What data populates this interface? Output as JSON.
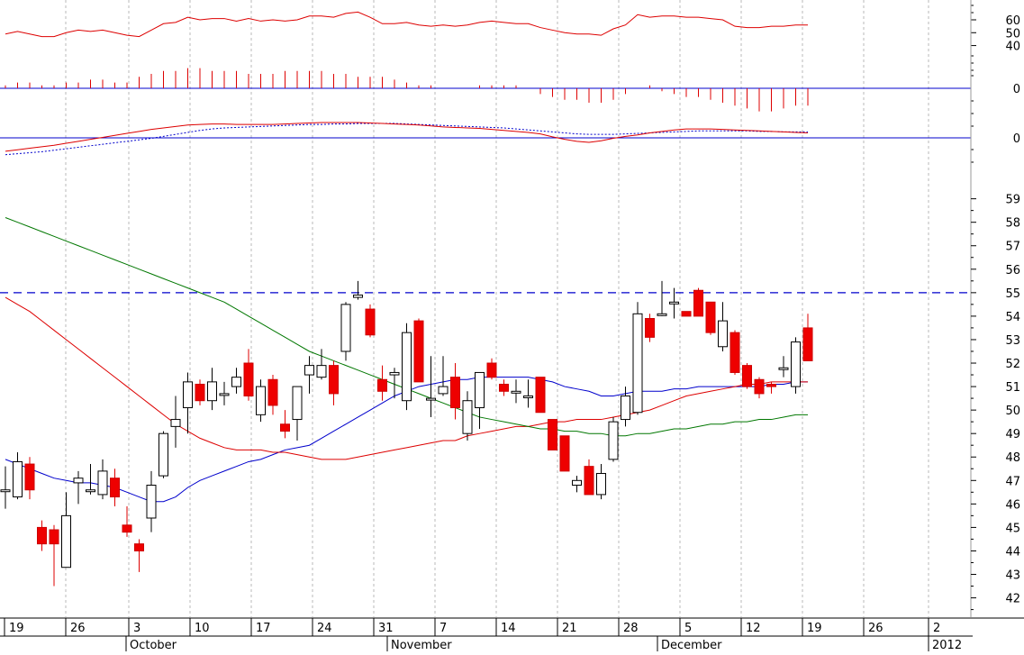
{
  "chart_data": {
    "type": "candlestick",
    "title": "",
    "price_axis": {
      "ticks": [
        42,
        43,
        44,
        45,
        46,
        47,
        48,
        49,
        50,
        51,
        52,
        53,
        54,
        55,
        56,
        57,
        58,
        59
      ],
      "labels": [
        "42",
        "43",
        "44",
        "45",
        "46",
        "47",
        "48",
        "49",
        "50",
        "51",
        "52",
        "53",
        "54",
        "55",
        "56",
        "57",
        "58",
        "59"
      ],
      "range": [
        41.6,
        59.6
      ]
    },
    "resistance_level": 55,
    "time_axis": {
      "week_labels": [
        "19",
        "26",
        "3",
        "10",
        "17",
        "24",
        "31",
        "7",
        "14",
        "21",
        "28",
        "5",
        "12",
        "19",
        "26",
        "2"
      ],
      "month_labels": [
        "October",
        "November",
        "December",
        "2012"
      ]
    },
    "candles": [
      {
        "date": "Sep 19",
        "open": 46.6,
        "high": 47.6,
        "low": 45.8,
        "close": 46.6
      },
      {
        "date": "Sep 20",
        "open": 46.3,
        "high": 48.2,
        "low": 46.2,
        "close": 47.8
      },
      {
        "date": "Sep 21",
        "open": 47.7,
        "high": 48.0,
        "low": 46.2,
        "close": 46.6
      },
      {
        "date": "Sep 22",
        "open": 45.0,
        "high": 45.3,
        "low": 44.0,
        "close": 44.3
      },
      {
        "date": "Sep 23",
        "open": 44.9,
        "high": 45.1,
        "low": 42.5,
        "close": 44.3
      },
      {
        "date": "Sep 26",
        "open": 43.3,
        "high": 46.5,
        "low": 43.3,
        "close": 45.5
      },
      {
        "date": "Sep 27",
        "open": 46.9,
        "high": 47.4,
        "low": 46.0,
        "close": 47.1
      },
      {
        "date": "Sep 28",
        "open": 46.6,
        "high": 47.7,
        "low": 46.4,
        "close": 46.6
      },
      {
        "date": "Sep 29",
        "open": 46.4,
        "high": 47.9,
        "low": 46.2,
        "close": 47.4
      },
      {
        "date": "Sep 30",
        "open": 47.1,
        "high": 47.5,
        "low": 45.9,
        "close": 46.3
      },
      {
        "date": "Oct 3",
        "open": 45.1,
        "high": 45.9,
        "low": 44.6,
        "close": 44.8
      },
      {
        "date": "Oct 4",
        "open": 44.3,
        "high": 44.5,
        "low": 43.1,
        "close": 44.0
      },
      {
        "date": "Oct 5",
        "open": 45.4,
        "high": 47.4,
        "low": 44.8,
        "close": 46.8
      },
      {
        "date": "Oct 6",
        "open": 47.2,
        "high": 49.1,
        "low": 47.1,
        "close": 49.0
      },
      {
        "date": "Oct 7",
        "open": 49.3,
        "high": 50.6,
        "low": 48.4,
        "close": 49.6
      },
      {
        "date": "Oct 10",
        "open": 50.1,
        "high": 51.6,
        "low": 49.0,
        "close": 51.2
      },
      {
        "date": "Oct 11",
        "open": 51.1,
        "high": 51.3,
        "low": 50.2,
        "close": 50.4
      },
      {
        "date": "Oct 12",
        "open": 50.4,
        "high": 51.8,
        "low": 50.0,
        "close": 51.2
      },
      {
        "date": "Oct 13",
        "open": 50.7,
        "high": 51.2,
        "low": 50.2,
        "close": 50.7
      },
      {
        "date": "Oct 14",
        "open": 51.0,
        "high": 51.8,
        "low": 50.7,
        "close": 51.4
      },
      {
        "date": "Oct 17",
        "open": 52.0,
        "high": 52.6,
        "low": 50.4,
        "close": 50.6
      },
      {
        "date": "Oct 18",
        "open": 49.8,
        "high": 51.3,
        "low": 49.5,
        "close": 51.0
      },
      {
        "date": "Oct 19",
        "open": 51.3,
        "high": 51.5,
        "low": 49.8,
        "close": 50.2
      },
      {
        "date": "Oct 20",
        "open": 49.4,
        "high": 50.0,
        "low": 48.8,
        "close": 49.1
      },
      {
        "date": "Oct 21",
        "open": 49.6,
        "high": 51.0,
        "low": 48.7,
        "close": 51.0
      },
      {
        "date": "Oct 24",
        "open": 51.5,
        "high": 52.3,
        "low": 50.7,
        "close": 51.9
      },
      {
        "date": "Oct 25",
        "open": 51.4,
        "high": 52.6,
        "low": 51.3,
        "close": 51.9
      },
      {
        "date": "Oct 26",
        "open": 51.9,
        "high": 52.1,
        "low": 50.2,
        "close": 50.7
      },
      {
        "date": "Oct 27",
        "open": 52.5,
        "high": 54.6,
        "low": 52.1,
        "close": 54.5
      },
      {
        "date": "Oct 28",
        "open": 54.8,
        "high": 55.5,
        "low": 54.7,
        "close": 54.9
      },
      {
        "date": "Oct 31",
        "open": 54.3,
        "high": 54.5,
        "low": 53.1,
        "close": 53.2
      },
      {
        "date": "Nov 1",
        "open": 51.3,
        "high": 51.9,
        "low": 50.4,
        "close": 50.8
      },
      {
        "date": "Nov 2",
        "open": 51.5,
        "high": 51.8,
        "low": 50.5,
        "close": 51.6
      },
      {
        "date": "Nov 3",
        "open": 50.4,
        "high": 53.7,
        "low": 50.0,
        "close": 53.3
      },
      {
        "date": "Nov 4",
        "open": 53.8,
        "high": 53.9,
        "low": 51.2,
        "close": 51.2
      },
      {
        "date": "Nov 7",
        "open": 50.5,
        "high": 52.3,
        "low": 49.7,
        "close": 50.5
      },
      {
        "date": "Nov 8",
        "open": 50.7,
        "high": 52.3,
        "low": 50.6,
        "close": 51.0
      },
      {
        "date": "Nov 9",
        "open": 51.4,
        "high": 52.0,
        "low": 49.6,
        "close": 50.1
      },
      {
        "date": "Nov 10",
        "open": 49.0,
        "high": 50.8,
        "low": 48.7,
        "close": 50.4
      },
      {
        "date": "Nov 11",
        "open": 50.1,
        "high": 51.6,
        "low": 49.2,
        "close": 51.6
      },
      {
        "date": "Nov 14",
        "open": 52.0,
        "high": 52.2,
        "low": 51.3,
        "close": 51.4
      },
      {
        "date": "Nov 15",
        "open": 51.1,
        "high": 51.3,
        "low": 50.6,
        "close": 50.8
      },
      {
        "date": "Nov 16",
        "open": 50.8,
        "high": 51.3,
        "low": 50.3,
        "close": 50.8
      },
      {
        "date": "Nov 17",
        "open": 50.6,
        "high": 51.3,
        "low": 50.1,
        "close": 50.6
      },
      {
        "date": "Nov 18",
        "open": 51.4,
        "high": 51.4,
        "low": 49.9,
        "close": 49.9
      },
      {
        "date": "Nov 21",
        "open": 49.6,
        "high": 49.6,
        "low": 48.3,
        "close": 48.3
      },
      {
        "date": "Nov 22",
        "open": 48.9,
        "high": 48.9,
        "low": 47.4,
        "close": 47.4
      },
      {
        "date": "Nov 23",
        "open": 46.8,
        "high": 47.2,
        "low": 46.5,
        "close": 47.0
      },
      {
        "date": "Nov 24",
        "open": 47.6,
        "high": 47.9,
        "low": 46.4,
        "close": 46.4
      },
      {
        "date": "Nov 25",
        "open": 46.4,
        "high": 47.7,
        "low": 46.2,
        "close": 47.3
      },
      {
        "date": "Nov 28",
        "open": 47.9,
        "high": 49.7,
        "low": 47.8,
        "close": 49.5
      },
      {
        "date": "Nov 29",
        "open": 49.6,
        "high": 51.0,
        "low": 49.3,
        "close": 50.6
      },
      {
        "date": "Nov 30",
        "open": 49.9,
        "high": 54.6,
        "low": 49.8,
        "close": 54.1
      },
      {
        "date": "Dec 1",
        "open": 53.9,
        "high": 54.1,
        "low": 52.9,
        "close": 53.1
      },
      {
        "date": "Dec 2",
        "open": 54.1,
        "high": 55.5,
        "low": 54.0,
        "close": 54.1
      },
      {
        "date": "Dec 5",
        "open": 54.6,
        "high": 55.2,
        "low": 53.9,
        "close": 54.6
      },
      {
        "date": "Dec 6",
        "open": 54.2,
        "high": 54.2,
        "low": 54.0,
        "close": 54.0
      },
      {
        "date": "Dec 7",
        "open": 55.1,
        "high": 55.2,
        "low": 54.0,
        "close": 54.0
      },
      {
        "date": "Dec 8",
        "open": 54.6,
        "high": 54.6,
        "low": 53.2,
        "close": 53.3
      },
      {
        "date": "Dec 9",
        "open": 52.7,
        "high": 54.6,
        "low": 52.5,
        "close": 53.8
      },
      {
        "date": "Dec 12",
        "open": 53.3,
        "high": 53.4,
        "low": 51.5,
        "close": 51.6
      },
      {
        "date": "Dec 13",
        "open": 51.9,
        "high": 52.0,
        "low": 50.9,
        "close": 51.0
      },
      {
        "date": "Dec 14",
        "open": 51.3,
        "high": 51.4,
        "low": 50.5,
        "close": 50.7
      },
      {
        "date": "Dec 15",
        "open": 51.1,
        "high": 51.2,
        "low": 50.7,
        "close": 51.0
      },
      {
        "date": "Dec 16",
        "open": 51.8,
        "high": 52.3,
        "low": 51.4,
        "close": 51.8
      },
      {
        "date": "Dec 19",
        "open": 51.0,
        "high": 53.1,
        "low": 50.7,
        "close": 52.9
      },
      {
        "date": "Dec 20",
        "open": 53.5,
        "high": 54.1,
        "low": 52.1,
        "close": 52.1
      }
    ],
    "moving_averages": [
      {
        "color": "#0000cc",
        "values": [
          47.9,
          47.7,
          47.5,
          47.3,
          47.1,
          47.0,
          46.9,
          46.9,
          46.8,
          46.7,
          46.5,
          46.3,
          46.1,
          46.1,
          46.3,
          46.7,
          47.0,
          47.2,
          47.4,
          47.6,
          47.8,
          47.9,
          48.1,
          48.3,
          48.4,
          48.5,
          48.8,
          49.1,
          49.4,
          49.7,
          50.0,
          50.3,
          50.6,
          50.8,
          51.0,
          51.1,
          51.2,
          51.3,
          51.3,
          51.4,
          51.4,
          51.4,
          51.4,
          51.4,
          51.3,
          51.2,
          51.0,
          50.9,
          50.8,
          50.6,
          50.6,
          50.7,
          50.8,
          50.8,
          50.8,
          50.9,
          50.9,
          51.0,
          51.0,
          51.0,
          51.0,
          51.0,
          51.0,
          51.1,
          51.1,
          51.2,
          51.2
        ]
      },
      {
        "color": "#dd0000",
        "values": [
          54.8,
          54.5,
          54.2,
          53.8,
          53.4,
          53.0,
          52.6,
          52.2,
          51.8,
          51.4,
          51.0,
          50.6,
          50.2,
          49.8,
          49.4,
          49.1,
          48.8,
          48.6,
          48.4,
          48.3,
          48.3,
          48.3,
          48.2,
          48.2,
          48.1,
          48.0,
          47.9,
          47.9,
          47.9,
          48.0,
          48.1,
          48.2,
          48.3,
          48.4,
          48.5,
          48.6,
          48.7,
          48.7,
          48.9,
          49.0,
          49.1,
          49.2,
          49.3,
          49.3,
          49.4,
          49.5,
          49.5,
          49.6,
          49.6,
          49.6,
          49.7,
          49.8,
          49.9,
          50.0,
          50.2,
          50.4,
          50.6,
          50.7,
          50.8,
          50.9,
          51.0,
          51.1,
          51.1,
          51.2,
          51.2,
          51.2,
          51.2
        ]
      },
      {
        "color": "#007700",
        "values": [
          58.2,
          58.0,
          57.8,
          57.6,
          57.4,
          57.2,
          57.0,
          56.8,
          56.6,
          56.4,
          56.2,
          56.0,
          55.8,
          55.6,
          55.4,
          55.2,
          55.0,
          54.8,
          54.6,
          54.3,
          54.0,
          53.7,
          53.4,
          53.1,
          52.8,
          52.5,
          52.3,
          52.1,
          51.9,
          51.7,
          51.5,
          51.3,
          51.1,
          50.9,
          50.7,
          50.5,
          50.3,
          50.1,
          49.9,
          49.7,
          49.6,
          49.5,
          49.4,
          49.3,
          49.2,
          49.2,
          49.1,
          49.1,
          49.0,
          49.0,
          48.9,
          48.9,
          49.0,
          49.0,
          49.1,
          49.2,
          49.2,
          49.3,
          49.4,
          49.4,
          49.5,
          49.5,
          49.6,
          49.6,
          49.7,
          49.8,
          49.8
        ]
      }
    ],
    "rsi": {
      "ticks": [
        40,
        50,
        60
      ],
      "labels": [
        "40",
        "50",
        "60"
      ],
      "range": [
        32,
        74
      ],
      "values": [
        49,
        51,
        49,
        47,
        47,
        50,
        52,
        51,
        52,
        50,
        48,
        47,
        52,
        57,
        58,
        62,
        60,
        61,
        61,
        59,
        61,
        59,
        60,
        59,
        60,
        63,
        63,
        62,
        65,
        66,
        62,
        57,
        57,
        58,
        56,
        55,
        56,
        55,
        56,
        58,
        59,
        58,
        57,
        57,
        54,
        52,
        50,
        49,
        49,
        48,
        53,
        56,
        64,
        62,
        63,
        63,
        62,
        62,
        61,
        60,
        55,
        54,
        54,
        55,
        55,
        56,
        56
      ]
    },
    "macd_histogram": {
      "zero_label": "0",
      "values": [
        1,
        2,
        2,
        1,
        1,
        2,
        2,
        3,
        3,
        2,
        2,
        4,
        5,
        6,
        6,
        7,
        7,
        6,
        6,
        6,
        5,
        5,
        5,
        6,
        6,
        6,
        6,
        5,
        5,
        4,
        4,
        4,
        3,
        2,
        1,
        1,
        0,
        0,
        0,
        1,
        1,
        1,
        1,
        0,
        -2,
        -3,
        -4,
        -4,
        -5,
        -5,
        -4,
        -2,
        0,
        1,
        -1,
        -2,
        -3,
        -3,
        -4,
        -5,
        -6,
        -7,
        -8,
        -8,
        -7,
        -6,
        -6
      ]
    },
    "macd": {
      "zero_label": "0",
      "line_color": "#dd0000",
      "signal_color": "#0000cc",
      "line": [
        -27,
        -24,
        -21,
        -18,
        -15,
        -11,
        -7,
        -3,
        1,
        5,
        9,
        13,
        17,
        20,
        23,
        26,
        27,
        28,
        28,
        27,
        27,
        27,
        27,
        28,
        29,
        30,
        31,
        31,
        31,
        31,
        30,
        29,
        28,
        27,
        26,
        24,
        22,
        21,
        20,
        19,
        17,
        15,
        13,
        11,
        8,
        2,
        -3,
        -7,
        -9,
        -6,
        -1,
        3,
        6,
        10,
        13,
        16,
        18,
        18,
        18,
        17,
        16,
        15,
        14,
        13,
        12,
        11,
        10
      ],
      "signal": [
        -34,
        -32,
        -30,
        -28,
        -25,
        -22,
        -19,
        -16,
        -13,
        -10,
        -7,
        -4,
        -1,
        3,
        7,
        11,
        15,
        18,
        20,
        21,
        22,
        23,
        24,
        25,
        26,
        27,
        27,
        28,
        28,
        29,
        29,
        29,
        29,
        28,
        27,
        26,
        25,
        24,
        23,
        22,
        21,
        20,
        18,
        16,
        14,
        12,
        10,
        8,
        7,
        7,
        7,
        8,
        9,
        10,
        11,
        12,
        13,
        14,
        14,
        14,
        14,
        14,
        13,
        13,
        12,
        12,
        12
      ]
    }
  }
}
